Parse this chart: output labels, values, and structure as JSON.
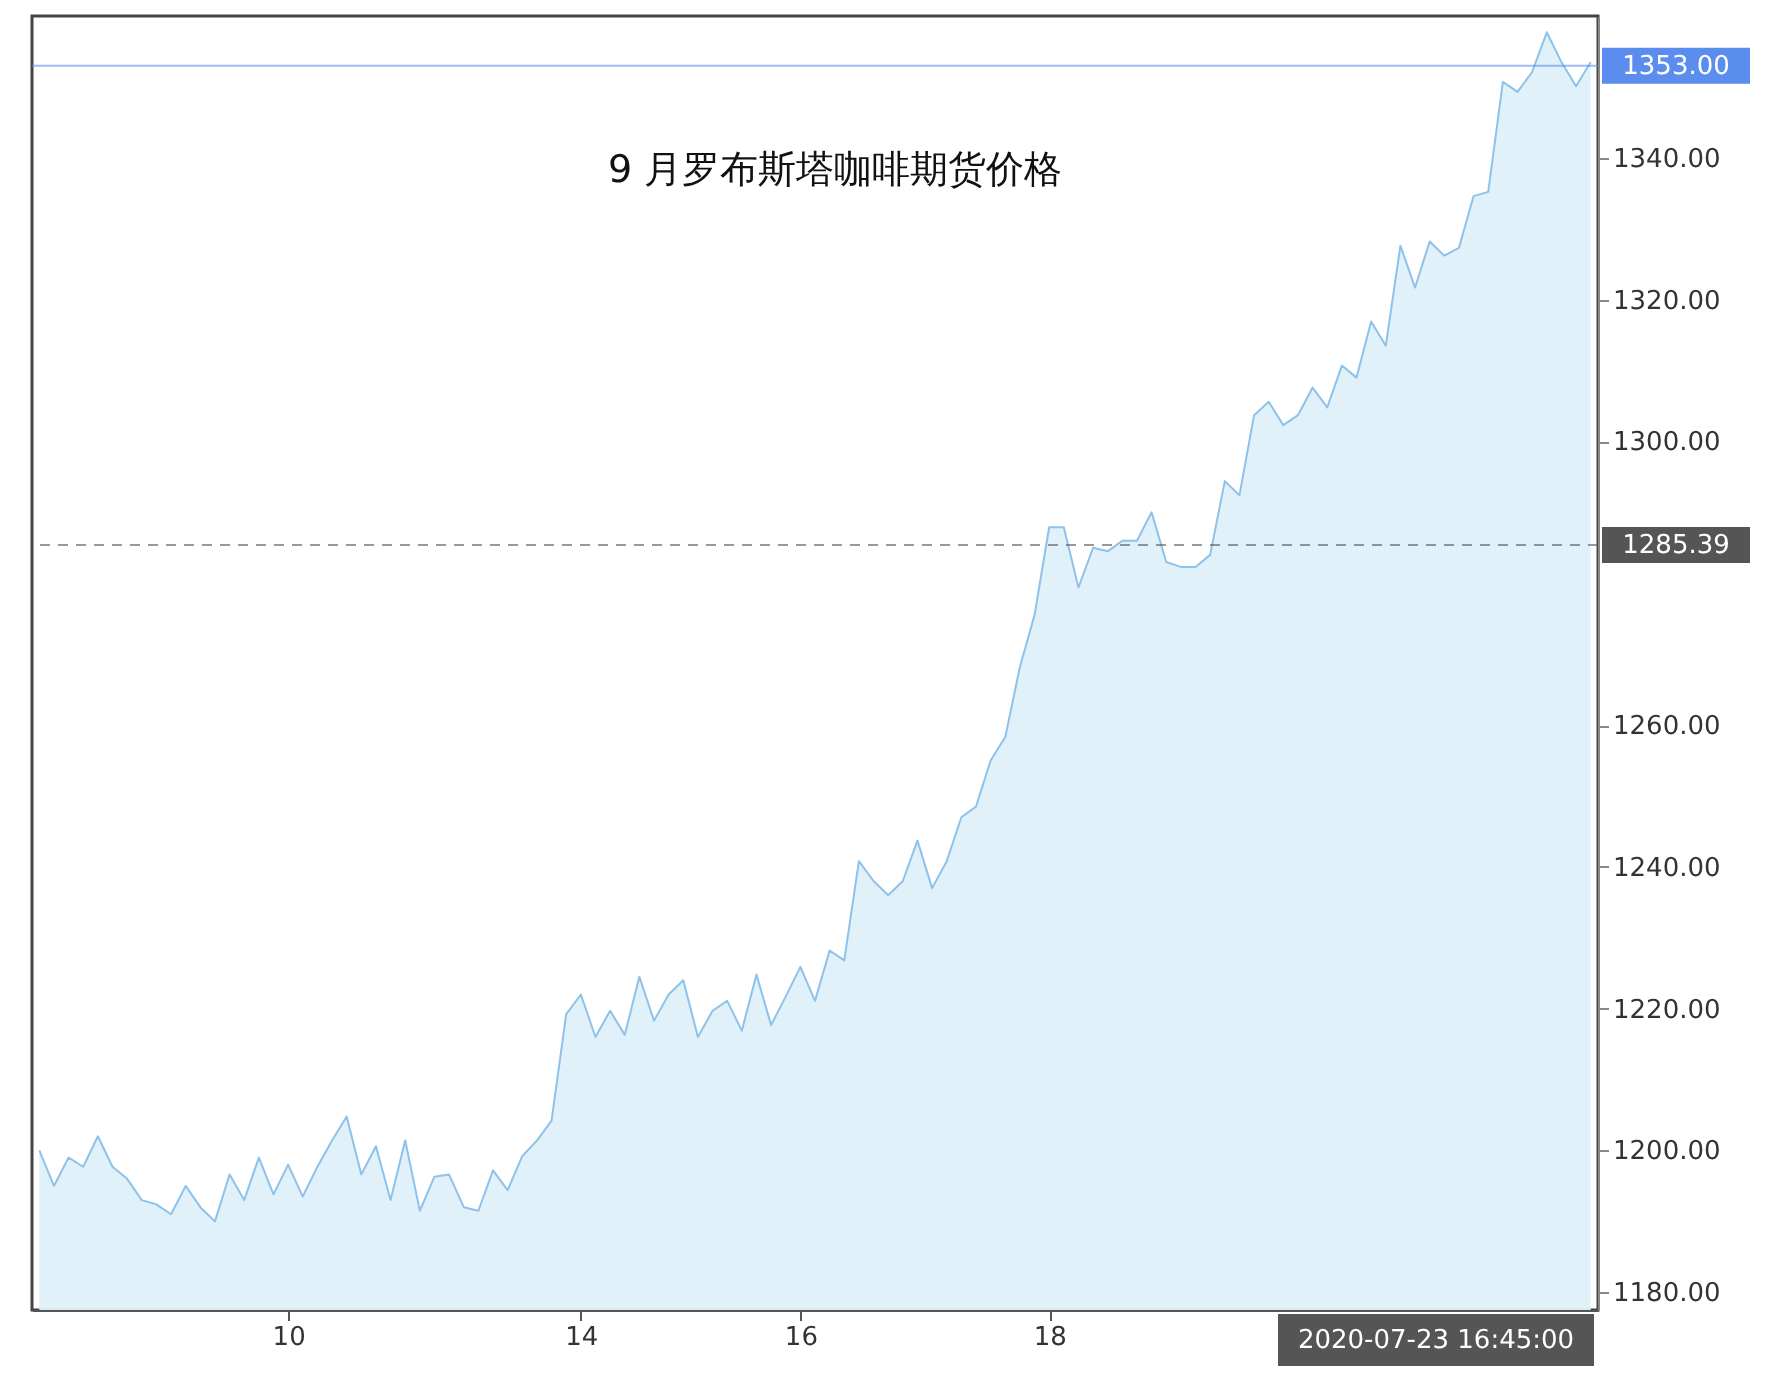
{
  "chart_data": {
    "type": "area",
    "title": "9 月罗布斯塔咖啡期货价格",
    "series": [
      {
        "color": "#8ec2ea",
        "values": [
          1200,
          1195,
          1199,
          1197.7,
          1202,
          1197.7,
          1196,
          1193,
          1192.4,
          1191,
          1195,
          1192,
          1190,
          1196.6,
          1193,
          1199,
          1193.8,
          1198,
          1193.5,
          1197.7,
          1201.4,
          1204.8,
          1196.6,
          1200.6,
          1193,
          1201.4,
          1191.5,
          1196.3,
          1196.6,
          1192,
          1191.5,
          1197.2,
          1194.4,
          1199.2,
          1201.4,
          1204.2,
          1219.2,
          1222,
          1216,
          1219.7,
          1216.3,
          1224.5,
          1218.3,
          1222,
          1224,
          1216,
          1219.7,
          1221.1,
          1216.9,
          1224.8,
          1217.7,
          1221.7,
          1225.9,
          1221.1,
          1228.2,
          1226.8,
          1240.8,
          1238,
          1236,
          1238,
          1243.7,
          1237,
          1240.8,
          1247,
          1248.5,
          1255,
          1258.3,
          1268.2,
          1275.5,
          1287.9,
          1287.9,
          1279.4,
          1285,
          1284.5,
          1286,
          1286,
          1290,
          1283,
          1282.3,
          1282.3,
          1284,
          1294.4,
          1292.4,
          1303.7,
          1305.6,
          1302.3,
          1303.7,
          1307.6,
          1304.8,
          1310.7,
          1309,
          1316.9,
          1313.5,
          1327.6,
          1321.7,
          1328.2,
          1326.2,
          1327.3,
          1334.6,
          1335.2,
          1350.7,
          1349.3,
          1352.1,
          1357.7,
          1353.5,
          1350.1,
          1353.5
        ]
      }
    ],
    "categories": [
      null,
      null,
      null,
      null,
      null,
      null,
      null,
      null,
      null,
      null,
      null,
      null,
      null,
      null,
      null,
      null,
      null,
      "10",
      null,
      null,
      null,
      null,
      null,
      null,
      null,
      null,
      null,
      null,
      null,
      null,
      null,
      null,
      null,
      null,
      null,
      null,
      null,
      "14",
      null,
      null,
      null,
      null,
      null,
      null,
      null,
      null,
      null,
      null,
      null,
      null,
      null,
      null,
      "16",
      null,
      null,
      null,
      null,
      null,
      null,
      null,
      null,
      null,
      null,
      null,
      null,
      null,
      null,
      null,
      null,
      "18",
      null,
      null,
      null,
      null,
      null,
      null,
      null,
      null,
      null,
      null,
      null,
      null,
      null,
      null,
      null,
      null,
      null,
      null,
      null,
      null,
      null,
      null,
      null,
      null,
      null,
      null,
      null,
      null,
      null,
      null,
      null,
      null,
      null,
      null,
      null,
      null,
      null
    ],
    "ylim": [
      1177.5,
      1360
    ],
    "yticks": [
      {
        "value": 1180,
        "label": "1180.00"
      },
      {
        "value": 1200,
        "label": "1200.00"
      },
      {
        "value": 1220,
        "label": "1220.00"
      },
      {
        "value": 1240,
        "label": "1240.00"
      },
      {
        "value": 1260,
        "label": "1260.00"
      },
      {
        "value": 1300,
        "label": "1300.00"
      },
      {
        "value": 1320,
        "label": "1320.00"
      },
      {
        "value": 1340,
        "label": "1340.00"
      }
    ],
    "ref_lines": [
      {
        "axis": "y",
        "value": 1353.0,
        "label": "1353.00",
        "color": "#5b8def",
        "line_style": "solid"
      },
      {
        "axis": "y",
        "value": 1285.39,
        "label": "1285.39",
        "color": "#555555",
        "line_style": "dashed"
      }
    ],
    "annotations": [
      "2020-07-23 16:45:00"
    ],
    "grid": false
  }
}
